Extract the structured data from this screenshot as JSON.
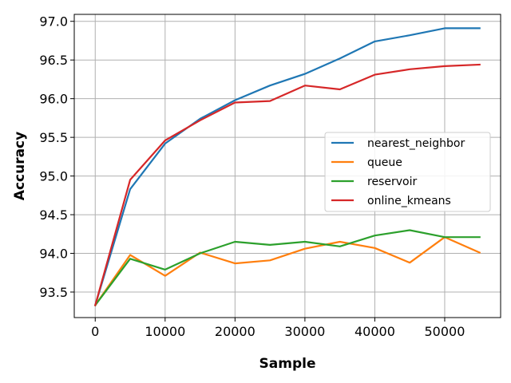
{
  "chart_data": {
    "type": "line",
    "title": "",
    "xlabel": "Sample",
    "ylabel": "Accuracy",
    "xlim": [
      -3000,
      58000
    ],
    "ylim": [
      93.17,
      97.09
    ],
    "xticks": [
      0,
      10000,
      20000,
      30000,
      40000,
      50000
    ],
    "xtick_labels": [
      "0",
      "10000",
      "20000",
      "30000",
      "40000",
      "50000"
    ],
    "yticks": [
      93.5,
      94.0,
      94.5,
      95.0,
      95.5,
      96.0,
      96.5,
      97.0
    ],
    "ytick_labels": [
      "93.5",
      "94.0",
      "94.5",
      "95.0",
      "95.5",
      "96.0",
      "96.5",
      "97.0"
    ],
    "grid": true,
    "legend_position": "center-right",
    "x": [
      0,
      5000,
      10000,
      15000,
      20000,
      25000,
      30000,
      35000,
      40000,
      45000,
      50000,
      55000
    ],
    "series": [
      {
        "name": "nearest_neighbor",
        "color": "#1f77b4",
        "values": [
          93.33,
          94.83,
          95.42,
          95.74,
          95.98,
          96.17,
          96.32,
          96.52,
          96.74,
          96.82,
          96.91,
          96.91
        ]
      },
      {
        "name": "queue",
        "color": "#ff7f0e",
        "values": [
          93.33,
          93.98,
          93.71,
          94.01,
          93.87,
          93.91,
          94.06,
          94.15,
          94.07,
          93.88,
          94.21,
          94.01
        ]
      },
      {
        "name": "reservoir",
        "color": "#2ca02c",
        "values": [
          93.33,
          93.93,
          93.79,
          94.0,
          94.15,
          94.11,
          94.15,
          94.09,
          94.23,
          94.3,
          94.21,
          94.21
        ]
      },
      {
        "name": "online_kmeans",
        "color": "#d62728",
        "values": [
          93.33,
          94.95,
          95.46,
          95.72,
          95.95,
          95.97,
          96.17,
          96.12,
          96.31,
          96.38,
          96.42,
          96.44
        ]
      }
    ]
  }
}
